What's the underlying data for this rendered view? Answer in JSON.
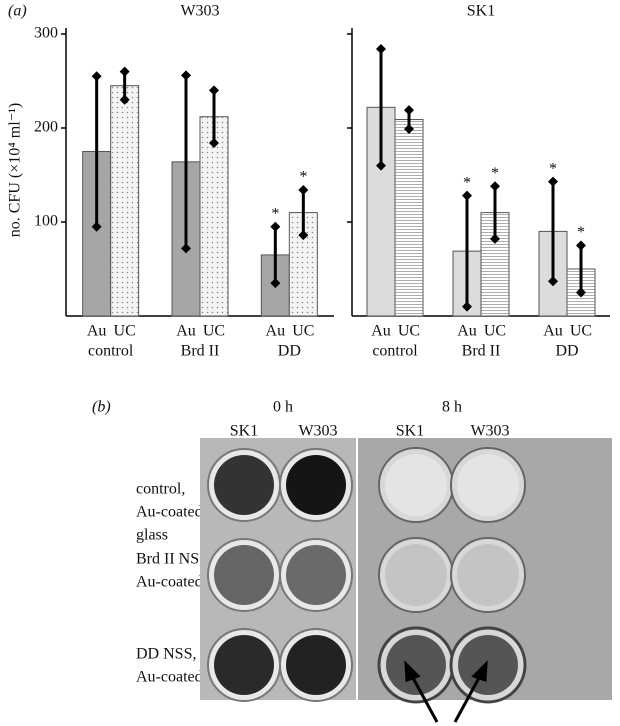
{
  "chart_data": [
    {
      "type": "bar",
      "title": "W303",
      "ylabel": "no. CFU (×10⁴ ml⁻¹)",
      "categories": [
        "control",
        "Brd II",
        "DD"
      ],
      "series": [
        {
          "name": "Au",
          "color": "#a6a6a6",
          "pattern": "none",
          "values": [
            175,
            164,
            65
          ],
          "errors": [
            80,
            92,
            30
          ],
          "starred": [
            false,
            false,
            true
          ]
        },
        {
          "name": "UC",
          "color": "#f4f4f4",
          "pattern": "dots",
          "values": [
            245,
            212,
            110
          ],
          "errors": [
            15,
            28,
            24
          ],
          "starred": [
            false,
            false,
            true
          ]
        }
      ],
      "annotation": "*",
      "ylim": [
        0,
        300
      ],
      "yticks": [
        100,
        200,
        300
      ],
      "show_tick_labels": true
    },
    {
      "type": "bar",
      "title": "SK1",
      "categories": [
        "control",
        "Brd II",
        "DD"
      ],
      "series": [
        {
          "name": "Au",
          "color": "#dcdcdc",
          "pattern": "none",
          "values": [
            222,
            69,
            90
          ],
          "errors": [
            62,
            59,
            53
          ],
          "starred": [
            false,
            true,
            true
          ]
        },
        {
          "name": "UC",
          "color": "#ffffff",
          "pattern": "hlines",
          "values": [
            209,
            110,
            50
          ],
          "errors": [
            10,
            28,
            25
          ],
          "starred": [
            false,
            true,
            true
          ]
        }
      ],
      "annotation": "*",
      "ylim": [
        0,
        300
      ],
      "yticks": [
        100,
        200,
        300
      ],
      "show_tick_labels": false
    }
  ],
  "figure": {
    "panel_a": "(a)",
    "panel_b": "(b)",
    "times": [
      "0 h",
      "8 h"
    ],
    "strains": [
      "SK1",
      "W303",
      "SK1",
      "W303"
    ],
    "rows": [
      [
        "control,",
        "Au-coated",
        "glass"
      ],
      [
        "Brd II NSS,",
        "Au-coated"
      ],
      [
        "DD NSS,",
        "Au-coated"
      ]
    ]
  }
}
